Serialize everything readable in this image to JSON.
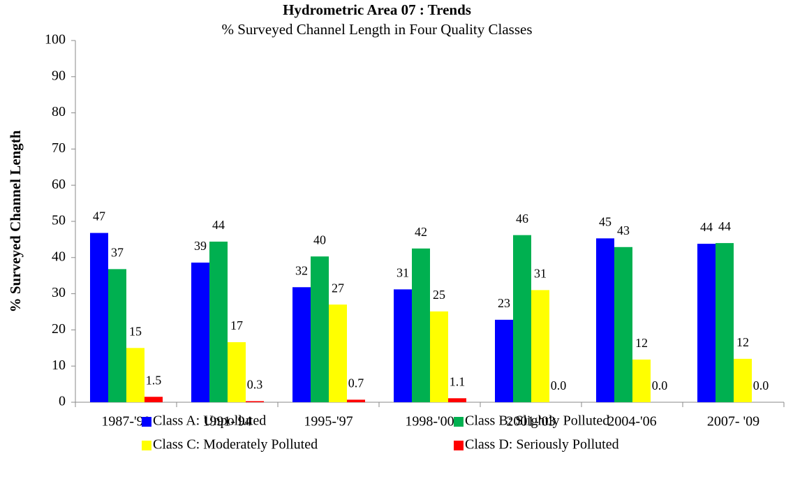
{
  "chart_data": {
    "type": "bar",
    "title": "Hydrometric Area 07 : Trends",
    "subtitle": "% Surveyed Channel Length in Four Quality Classes",
    "y_label": "% Surveyed Channel Length",
    "categories": [
      "1987-'90",
      "1991-'94",
      "1995-'97",
      "1998-'00",
      "2001-'03",
      "2004-'06",
      "2007- '09"
    ],
    "series": [
      {
        "name": "Class A: Unpolluted",
        "color": "#0000ff",
        "values": [
          46.8,
          38.6,
          31.8,
          31.2,
          22.8,
          45.3,
          43.8
        ],
        "value_labels": [
          "47",
          "39",
          "32",
          "31",
          "23",
          "45",
          "44"
        ]
      },
      {
        "name": "Class B: Slightly Polluted",
        "color": "#00b050",
        "values": [
          36.8,
          44.4,
          40.3,
          42.5,
          46.2,
          42.9,
          44.0
        ],
        "value_labels": [
          "37",
          "44",
          "40",
          "42",
          "46",
          "43",
          "44"
        ]
      },
      {
        "name": "Class C: Moderately Polluted",
        "color": "#ffff00",
        "values": [
          15.0,
          16.6,
          27.0,
          25.1,
          31.0,
          11.8,
          12.0
        ],
        "value_labels": [
          "15",
          "17",
          "27",
          "25",
          "31",
          "12",
          "12"
        ]
      },
      {
        "name": "Class D: Seriously Polluted",
        "color": "#ff0000",
        "values": [
          1.5,
          0.3,
          0.7,
          1.1,
          0,
          0,
          0
        ],
        "value_labels": [
          "1.5",
          "0.3",
          "0.7",
          "1.1",
          "0.0",
          "0.0",
          "0.0"
        ]
      }
    ],
    "ylim": [
      0,
      100
    ],
    "yticks": [
      0,
      10,
      20,
      30,
      40,
      50,
      60,
      70,
      80,
      90,
      100
    ],
    "grid": false,
    "legend": "bottom"
  }
}
